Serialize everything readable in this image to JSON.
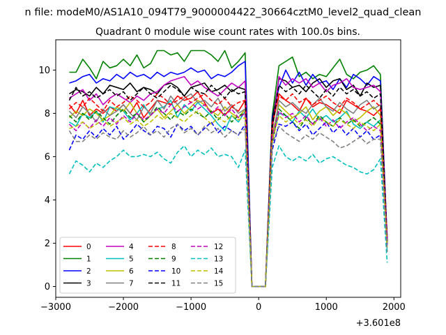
{
  "chart_data": {
    "type": "line",
    "suptitle": "n file: modeM0/AS1A10_094T79_9000004422_30664cztM0_level2_quad_clean",
    "title": "Quadrant 0 module wise count rates with 100.0s bins.",
    "xlabel": "",
    "ylabel": "",
    "offset_text": "+3.601e8",
    "xlim": [
      -3000,
      2100
    ],
    "ylim": [
      -0.5,
      11.4
    ],
    "xticks": [
      -3000,
      -2000,
      -1000,
      0,
      1000,
      2000
    ],
    "xtick_labels": [
      "−3000",
      "−2000",
      "−1000",
      "0",
      "1000",
      "2000"
    ],
    "yticks": [
      0,
      2,
      4,
      6,
      8,
      10
    ],
    "ytick_labels": [
      "0",
      "2",
      "4",
      "6",
      "8",
      "10"
    ],
    "grid": false,
    "legend": {
      "placement": "lower-left",
      "columns": 4
    },
    "x": [
      -2800,
      -2700,
      -2600,
      -2500,
      -2400,
      -2300,
      -2200,
      -2100,
      -2000,
      -1900,
      -1800,
      -1700,
      -1600,
      -1500,
      -1400,
      -1300,
      -1200,
      -1100,
      -1000,
      -900,
      -800,
      -700,
      -600,
      -500,
      -400,
      -300,
      -200,
      -100,
      0,
      100,
      200,
      300,
      400,
      500,
      600,
      700,
      800,
      900,
      1000,
      1100,
      1200,
      1300,
      1400,
      1500,
      1600,
      1700,
      1800,
      1900
    ],
    "series": [
      {
        "name": "0",
        "color": "#ff0000",
        "dash": "solid",
        "values": [
          8.4,
          8.0,
          8.6,
          7.9,
          8.2,
          8.0,
          8.3,
          8.1,
          8.4,
          8.0,
          8.5,
          7.8,
          8.2,
          8.6,
          8.5,
          8.4,
          8.8,
          8.6,
          8.7,
          9.0,
          8.5,
          8.0,
          8.2,
          7.9,
          8.3,
          8.1,
          8.6,
          0,
          0,
          0,
          7.4,
          8.9,
          8.6,
          8.4,
          8.1,
          8.7,
          8.3,
          8.5,
          8.4,
          8.2,
          8.0,
          8.6,
          8.4,
          8.2,
          8.1,
          7.9,
          8.2,
          2.1
        ]
      },
      {
        "name": "1",
        "color": "#008000",
        "dash": "solid",
        "values": [
          9.9,
          9.9,
          10.5,
          10.1,
          9.6,
          10.4,
          10.1,
          10.2,
          10.5,
          10.2,
          10.7,
          10.1,
          10.3,
          10.9,
          10.9,
          10.7,
          10.8,
          10.4,
          10.9,
          10.9,
          10.9,
          10.7,
          10.4,
          10.9,
          10.1,
          10.4,
          10.8,
          0,
          0,
          0,
          7.9,
          10.2,
          10.4,
          10.6,
          9.7,
          9.9,
          9.6,
          9.8,
          9.7,
          10.1,
          10.5,
          9.8,
          9.6,
          9.9,
          10.0,
          10.2,
          9.8,
          2.0
        ]
      },
      {
        "name": "2",
        "color": "#0000ff",
        "dash": "solid",
        "values": [
          9.4,
          9.5,
          9.7,
          9.8,
          9.4,
          9.6,
          9.5,
          9.8,
          9.6,
          9.9,
          9.7,
          9.8,
          9.6,
          9.9,
          9.7,
          9.9,
          9.8,
          9.9,
          10.1,
          9.9,
          10.0,
          9.6,
          9.8,
          9.7,
          9.9,
          10.2,
          10.4,
          0,
          0,
          0,
          7.8,
          9.2,
          10.0,
          9.4,
          9.9,
          9.3,
          9.8,
          9.4,
          9.5,
          9.1,
          9.6,
          9.2,
          9.8,
          9.6,
          9.3,
          9.7,
          9.5,
          2.2
        ]
      },
      {
        "name": "3",
        "color": "#000000",
        "dash": "solid",
        "values": [
          8.9,
          9.1,
          9.0,
          8.8,
          9.2,
          8.9,
          9.3,
          9.2,
          9.1,
          9.4,
          9.0,
          9.2,
          9.1,
          8.9,
          9.3,
          9.4,
          9.2,
          8.8,
          9.2,
          9.3,
          9.4,
          9.0,
          9.1,
          9.3,
          9.0,
          9.2,
          9.1,
          0,
          0,
          0,
          7.6,
          9.6,
          9.5,
          9.2,
          9.3,
          9.0,
          9.4,
          9.6,
          9.2,
          9.5,
          9.6,
          9.1,
          9.3,
          8.8,
          9.4,
          9.2,
          9.3,
          2.0
        ]
      },
      {
        "name": "4",
        "color": "#bf00bf",
        "dash": "solid",
        "values": [
          8.7,
          8.9,
          9.1,
          8.6,
          8.9,
          8.4,
          8.7,
          8.9,
          8.7,
          8.5,
          8.8,
          8.6,
          8.9,
          9.0,
          9.3,
          9.5,
          9.6,
          9.7,
          9.3,
          9.5,
          9.2,
          9.0,
          8.8,
          9.1,
          9.4,
          9.2,
          9.5,
          0,
          0,
          0,
          7.2,
          9.7,
          9.3,
          9.6,
          9.4,
          9.6,
          9.2,
          9.4,
          9.0,
          9.3,
          9.4,
          9.6,
          9.2,
          9.1,
          9.2,
          9.3,
          9.0,
          2.3
        ]
      },
      {
        "name": "5",
        "color": "#00bfbf",
        "dash": "solid",
        "values": [
          7.6,
          7.4,
          8.0,
          7.8,
          8.1,
          7.6,
          8.3,
          8.2,
          8.1,
          7.7,
          8.0,
          8.4,
          7.9,
          8.2,
          8.3,
          8.6,
          7.8,
          8.4,
          8.1,
          8.5,
          8.2,
          7.9,
          7.5,
          7.2,
          7.9,
          7.6,
          8.1,
          0,
          0,
          0,
          6.8,
          8.0,
          7.9,
          7.6,
          8.1,
          7.8,
          8.2,
          7.7,
          7.9,
          7.6,
          7.8,
          8.1,
          7.5,
          7.3,
          7.6,
          7.4,
          7.7,
          1.6
        ]
      },
      {
        "name": "6",
        "color": "#bfbf00",
        "dash": "solid",
        "values": [
          7.8,
          8.1,
          7.9,
          8.2,
          8.0,
          7.7,
          7.9,
          8.3,
          8.1,
          8.5,
          8.0,
          7.6,
          7.9,
          8.2,
          7.8,
          8.1,
          8.4,
          8.0,
          8.3,
          8.6,
          8.4,
          8.1,
          7.9,
          8.3,
          8.0,
          7.8,
          8.2,
          0,
          0,
          0,
          7.0,
          8.4,
          8.1,
          7.8,
          8.0,
          8.3,
          7.7,
          8.1,
          8.3,
          7.9,
          8.2,
          8.0,
          7.6,
          7.8,
          8.1,
          8.3,
          7.9,
          2.0
        ]
      },
      {
        "name": "7",
        "color": "#808080",
        "dash": "solid",
        "values": [
          8.1,
          7.8,
          8.3,
          8.0,
          7.6,
          8.2,
          7.9,
          8.1,
          8.4,
          8.0,
          7.7,
          8.3,
          8.0,
          8.6,
          8.2,
          8.8,
          8.4,
          8.7,
          8.9,
          8.5,
          8.6,
          8.3,
          8.7,
          8.1,
          8.4,
          8.0,
          8.2,
          0,
          0,
          0,
          6.6,
          8.6,
          8.3,
          8.5,
          8.2,
          8.0,
          8.4,
          8.7,
          8.3,
          8.1,
          8.5,
          8.2,
          8.0,
          8.4,
          8.6,
          8.2,
          8.4,
          2.1
        ]
      },
      {
        "name": "8",
        "color": "#ff0000",
        "dash": "dashed",
        "values": [
          8.2,
          8.5,
          8.3,
          8.7,
          8.4,
          8.1,
          8.6,
          8.3,
          8.5,
          8.8,
          8.6,
          8.3,
          8.5,
          8.9,
          8.7,
          8.4,
          8.6,
          8.8,
          8.5,
          8.7,
          8.9,
          8.6,
          8.4,
          8.7,
          8.3,
          8.5,
          8.6,
          0,
          0,
          0,
          7.5,
          8.8,
          8.6,
          8.9,
          8.5,
          8.7,
          8.4,
          8.6,
          8.8,
          8.5,
          8.3,
          8.7,
          8.5,
          8.2,
          8.4,
          8.6,
          8.3,
          2.2
        ]
      },
      {
        "name": "9",
        "color": "#008000",
        "dash": "dashed",
        "values": [
          7.9,
          7.6,
          8.0,
          7.7,
          8.1,
          7.8,
          7.5,
          7.9,
          8.2,
          7.8,
          8.0,
          7.6,
          7.9,
          8.3,
          8.0,
          7.7,
          8.1,
          7.9,
          8.2,
          8.0,
          7.8,
          8.1,
          7.7,
          8.0,
          7.6,
          7.9,
          8.0,
          0,
          0,
          0,
          6.6,
          8.2,
          7.9,
          7.6,
          7.3,
          7.8,
          7.5,
          7.9,
          7.6,
          7.4,
          7.8,
          7.5,
          7.7,
          7.4,
          7.6,
          7.8,
          7.5,
          1.9
        ]
      },
      {
        "name": "10",
        "color": "#0000ff",
        "dash": "dashed",
        "values": [
          6.3,
          7.0,
          6.8,
          7.2,
          6.9,
          7.3,
          7.0,
          7.4,
          6.8,
          7.1,
          7.5,
          7.2,
          7.0,
          7.4,
          7.3,
          6.9,
          7.5,
          7.2,
          7.4,
          7.0,
          7.3,
          7.6,
          7.1,
          7.4,
          7.2,
          7.0,
          7.5,
          0,
          0,
          0,
          6.3,
          7.5,
          7.4,
          7.6,
          7.2,
          7.5,
          7.0,
          7.3,
          7.6,
          7.1,
          7.4,
          7.0,
          7.3,
          6.9,
          7.2,
          6.8,
          7.0,
          1.9
        ]
      },
      {
        "name": "11",
        "color": "#000000",
        "dash": "dashed",
        "values": [
          8.6,
          9.2,
          8.8,
          9.0,
          8.7,
          8.9,
          9.1,
          8.8,
          9.0,
          8.6,
          8.9,
          9.2,
          8.9,
          8.7,
          9.0,
          9.3,
          9.1,
          8.8,
          9.2,
          9.0,
          8.9,
          9.3,
          9.0,
          8.7,
          9.1,
          8.9,
          9.0,
          0,
          0,
          0,
          7.3,
          9.3,
          9.0,
          9.2,
          8.9,
          9.3,
          9.0,
          8.7,
          9.1,
          8.8,
          9.2,
          8.9,
          9.1,
          8.8,
          9.0,
          8.7,
          8.9,
          2.1
        ]
      },
      {
        "name": "12",
        "color": "#bf00bf",
        "dash": "dashed",
        "values": [
          7.5,
          7.2,
          7.6,
          7.3,
          7.7,
          7.4,
          7.8,
          7.5,
          7.9,
          7.6,
          8.0,
          7.7,
          7.9,
          8.2,
          8.0,
          8.4,
          8.1,
          8.3,
          8.5,
          8.2,
          8.4,
          8.0,
          8.3,
          7.9,
          8.2,
          7.8,
          8.0,
          0,
          0,
          0,
          6.9,
          8.1,
          7.8,
          8.0,
          7.6,
          7.9,
          7.5,
          7.8,
          7.4,
          7.7,
          7.3,
          7.6,
          7.8,
          7.5,
          7.2,
          7.4,
          7.2,
          2.0
        ]
      },
      {
        "name": "13",
        "color": "#00bfbf",
        "dash": "dashed",
        "values": [
          5.2,
          5.8,
          5.6,
          5.3,
          5.7,
          5.5,
          5.8,
          6.0,
          6.3,
          6.0,
          6.0,
          6.1,
          6.0,
          6.2,
          5.9,
          5.7,
          6.2,
          6.5,
          6.0,
          6.3,
          6.1,
          6.4,
          6.0,
          6.1,
          6.0,
          5.5,
          6.3,
          0,
          0,
          0,
          5.5,
          6.5,
          6.0,
          5.8,
          6.0,
          5.8,
          6.1,
          5.7,
          5.9,
          6.0,
          5.8,
          5.6,
          5.5,
          5.3,
          5.2,
          5.4,
          5.9,
          1.1
        ]
      },
      {
        "name": "14",
        "color": "#bfbf00",
        "dash": "dashed",
        "values": [
          7.3,
          7.4,
          7.6,
          7.3,
          7.5,
          7.7,
          7.4,
          7.6,
          7.8,
          7.5,
          7.7,
          7.4,
          7.6,
          7.9,
          7.7,
          8.0,
          7.8,
          7.6,
          7.9,
          8.1,
          7.8,
          7.5,
          7.8,
          7.6,
          7.9,
          7.7,
          7.8,
          0,
          0,
          0,
          6.7,
          7.9,
          7.6,
          7.8,
          7.5,
          7.7,
          7.4,
          7.8,
          7.6,
          7.4,
          7.7,
          7.5,
          7.3,
          7.6,
          7.4,
          7.2,
          7.5,
          1.8
        ]
      },
      {
        "name": "15",
        "color": "#808080",
        "dash": "dashed",
        "values": [
          7.2,
          6.7,
          6.7,
          7.0,
          6.8,
          7.1,
          6.9,
          6.8,
          7.2,
          6.9,
          7.1,
          7.4,
          7.0,
          7.2,
          6.9,
          7.3,
          7.5,
          7.1,
          7.3,
          7.0,
          7.4,
          7.1,
          7.3,
          6.9,
          7.2,
          7.0,
          7.3,
          0,
          0,
          0,
          6.6,
          7.4,
          7.1,
          6.9,
          6.7,
          7.0,
          6.8,
          7.1,
          6.9,
          6.7,
          6.4,
          6.5,
          6.7,
          6.9,
          6.6,
          6.8,
          6.8,
          1.6
        ]
      }
    ]
  }
}
